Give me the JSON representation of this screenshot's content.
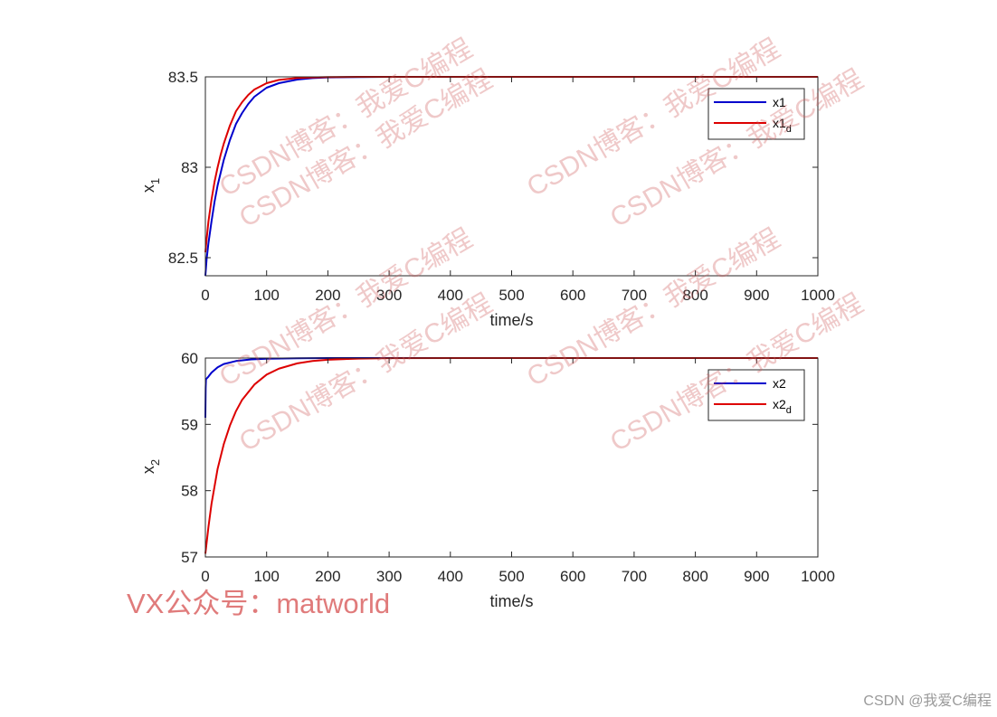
{
  "watermark": {
    "repeat_text": "CSDN博客：我爱C编程",
    "contact_text": "VX公众号：matworld",
    "credit_text": "CSDN @我爱C编程"
  },
  "chart_data": [
    {
      "type": "line",
      "xlabel": "time/s",
      "ylabel": "x",
      "ylabel_sub": "1",
      "xlim": [
        0,
        1000
      ],
      "ylim": [
        82.4,
        83.5
      ],
      "xticks": [
        0,
        100,
        200,
        300,
        400,
        500,
        600,
        700,
        800,
        900,
        1000
      ],
      "yticks": [
        82.5,
        83,
        83.5
      ],
      "ytick_labels": [
        "82.5",
        "83",
        "83.5"
      ],
      "grid": false,
      "legend_position": "top-right",
      "series": [
        {
          "name": "x1",
          "color": "#0000cc",
          "x": [
            0,
            2,
            5,
            10,
            15,
            20,
            25,
            30,
            40,
            50,
            60,
            70,
            80,
            100,
            120,
            150,
            175,
            200,
            250,
            300,
            400,
            500,
            600,
            700,
            800,
            900,
            1000
          ],
          "y": [
            82.4,
            82.49,
            82.58,
            82.7,
            82.81,
            82.9,
            82.97,
            83.04,
            83.15,
            83.24,
            83.3,
            83.35,
            83.39,
            83.44,
            83.465,
            83.485,
            83.493,
            83.497,
            83.499,
            83.5,
            83.5,
            83.5,
            83.5,
            83.5,
            83.5,
            83.5,
            83.5
          ]
        },
        {
          "name": "x1",
          "name_sub": "d",
          "color": "#dd0000",
          "x": [
            0,
            2,
            5,
            10,
            15,
            20,
            25,
            30,
            40,
            50,
            60,
            70,
            80,
            100,
            120,
            150,
            175,
            200,
            250,
            300,
            400,
            500,
            600,
            700,
            800,
            900,
            1000
          ],
          "y": [
            82.53,
            82.6,
            82.7,
            82.82,
            82.92,
            83.0,
            83.07,
            83.13,
            83.23,
            83.31,
            83.36,
            83.4,
            83.43,
            83.465,
            83.483,
            83.494,
            83.497,
            83.499,
            83.5,
            83.5,
            83.5,
            83.5,
            83.5,
            83.5,
            83.5,
            83.5,
            83.5
          ]
        }
      ]
    },
    {
      "type": "line",
      "xlabel": "time/s",
      "ylabel": "x",
      "ylabel_sub": "2",
      "xlim": [
        0,
        1000
      ],
      "ylim": [
        57,
        60
      ],
      "xticks": [
        0,
        100,
        200,
        300,
        400,
        500,
        600,
        700,
        800,
        900,
        1000
      ],
      "yticks": [
        57,
        58,
        59,
        60
      ],
      "ytick_labels": [
        "57",
        "58",
        "59",
        "60"
      ],
      "grid": false,
      "legend_position": "top-right",
      "series": [
        {
          "name": "x2",
          "color": "#0000cc",
          "x": [
            0,
            0.5,
            1,
            5,
            10,
            20,
            30,
            50,
            75,
            100,
            150,
            200,
            300,
            400,
            500,
            600,
            700,
            800,
            900,
            1000
          ],
          "y": [
            59.1,
            59.55,
            59.68,
            59.72,
            59.78,
            59.86,
            59.91,
            59.955,
            59.98,
            59.99,
            59.997,
            60.0,
            60.0,
            60.0,
            60.0,
            60.0,
            60.0,
            60.0,
            60.0,
            60.0
          ]
        },
        {
          "name": "x2",
          "name_sub": "d",
          "color": "#dd0000",
          "x": [
            0,
            5,
            10,
            20,
            30,
            40,
            50,
            60,
            80,
            100,
            120,
            150,
            175,
            200,
            250,
            300,
            400,
            500,
            600,
            700,
            800,
            900,
            1000
          ],
          "y": [
            57.05,
            57.45,
            57.8,
            58.33,
            58.7,
            58.98,
            59.2,
            59.37,
            59.6,
            59.75,
            59.84,
            59.92,
            59.955,
            59.975,
            59.992,
            59.998,
            60.0,
            60.0,
            60.0,
            60.0,
            60.0,
            60.0,
            60.0
          ]
        }
      ]
    }
  ]
}
